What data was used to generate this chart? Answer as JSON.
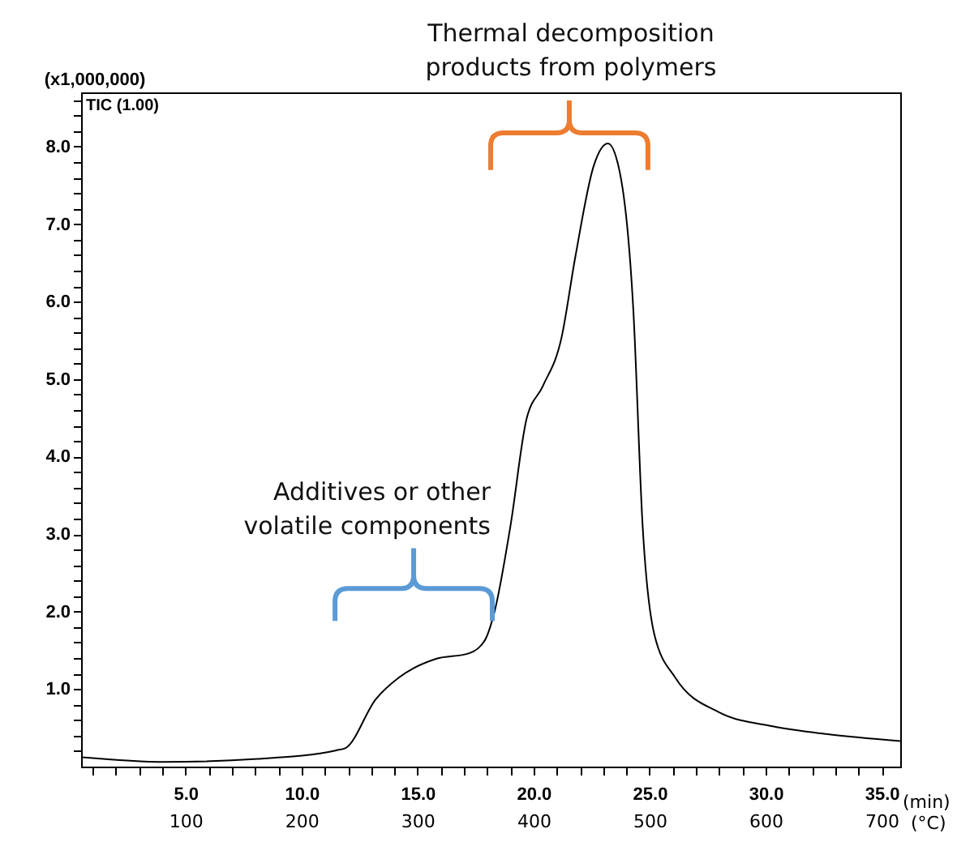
{
  "chart_data": {
    "type": "line",
    "ylabel": "(x1,000,000)",
    "xlabel": "(min)",
    "x2label": "(°C)",
    "x": [
      0.55,
      4.1,
      8.1,
      11.5,
      11.9,
      13.2,
      14.2,
      15.8,
      17.2,
      17.9,
      18.3,
      19.0,
      19.7,
      20.4,
      21.2,
      21.8,
      22.6,
      23.2,
      23.7,
      24.3,
      24.7,
      25.2,
      26.1,
      28.0,
      30.3,
      32.6,
      35.8
    ],
    "series": [
      {
        "color": "#000000",
        "values": [
          0.12,
          0.06,
          0.1,
          0.21,
          0.24,
          0.87,
          1.15,
          1.39,
          1.46,
          1.63,
          1.98,
          3.1,
          4.49,
          4.91,
          5.53,
          6.58,
          7.76,
          8.04,
          7.69,
          5.88,
          3.1,
          1.71,
          1.15,
          0.7,
          0.52,
          0.42,
          0.33
        ]
      }
    ],
    "xlim": [
      0.5,
      35.8
    ],
    "ylim": [
      0,
      8.7
    ],
    "x2lim": [
      10,
      716
    ],
    "xticks": [
      {
        "value": 1,
        "label": null
      },
      {
        "value": 2,
        "label": null
      },
      {
        "value": 3,
        "label": null
      },
      {
        "value": 4,
        "label": null
      },
      {
        "value": 5,
        "label": "5.0"
      },
      {
        "value": 6,
        "label": null
      },
      {
        "value": 7,
        "label": null
      },
      {
        "value": 8,
        "label": null
      },
      {
        "value": 9,
        "label": null
      },
      {
        "value": 10,
        "label": "10.0"
      },
      {
        "value": 11,
        "label": null
      },
      {
        "value": 12,
        "label": null
      },
      {
        "value": 13,
        "label": null
      },
      {
        "value": 14,
        "label": null
      },
      {
        "value": 15,
        "label": "15.0"
      },
      {
        "value": 16,
        "label": null
      },
      {
        "value": 17,
        "label": null
      },
      {
        "value": 18,
        "label": null
      },
      {
        "value": 19,
        "label": null
      },
      {
        "value": 20,
        "label": "20.0"
      },
      {
        "value": 21,
        "label": null
      },
      {
        "value": 22,
        "label": null
      },
      {
        "value": 23,
        "label": null
      },
      {
        "value": 24,
        "label": null
      },
      {
        "value": 25,
        "label": "25.0"
      },
      {
        "value": 26,
        "label": null
      },
      {
        "value": 27,
        "label": null
      },
      {
        "value": 28,
        "label": null
      },
      {
        "value": 29,
        "label": null
      },
      {
        "value": 30,
        "label": "30.0"
      },
      {
        "value": 31,
        "label": null
      },
      {
        "value": 32,
        "label": null
      },
      {
        "value": 33,
        "label": null
      },
      {
        "value": 34,
        "label": null
      },
      {
        "value": 35,
        "label": "35.0"
      }
    ],
    "x2ticks": [
      100,
      200,
      300,
      400,
      500,
      600,
      700
    ],
    "yticks": [
      {
        "value": 0.2,
        "label": null
      },
      {
        "value": 0.4,
        "label": null
      },
      {
        "value": 0.6,
        "label": null
      },
      {
        "value": 0.8,
        "label": null
      },
      {
        "value": 1,
        "label": "1.0"
      },
      {
        "value": 1.2,
        "label": null
      },
      {
        "value": 1.4,
        "label": null
      },
      {
        "value": 1.6,
        "label": null
      },
      {
        "value": 1.8,
        "label": null
      },
      {
        "value": 2,
        "label": "2.0"
      },
      {
        "value": 2.2,
        "label": null
      },
      {
        "value": 2.4,
        "label": null
      },
      {
        "value": 2.6,
        "label": null
      },
      {
        "value": 2.8,
        "label": null
      },
      {
        "value": 3,
        "label": "3.0"
      },
      {
        "value": 3.2,
        "label": null
      },
      {
        "value": 3.4,
        "label": null
      },
      {
        "value": 3.6,
        "label": null
      },
      {
        "value": 3.8,
        "label": null
      },
      {
        "value": 4,
        "label": "4.0"
      },
      {
        "value": 4.2,
        "label": null
      },
      {
        "value": 4.4,
        "label": null
      },
      {
        "value": 4.6,
        "label": null
      },
      {
        "value": 4.8,
        "label": null
      },
      {
        "value": 5,
        "label": "5.0"
      },
      {
        "value": 5.2,
        "label": null
      },
      {
        "value": 5.4,
        "label": null
      },
      {
        "value": 5.6,
        "label": null
      },
      {
        "value": 5.8,
        "label": null
      },
      {
        "value": 6,
        "label": "6.0"
      },
      {
        "value": 6.2,
        "label": null
      },
      {
        "value": 6.4,
        "label": null
      },
      {
        "value": 6.6,
        "label": null
      },
      {
        "value": 6.8,
        "label": null
      },
      {
        "value": 7,
        "label": "7.0"
      },
      {
        "value": 7.2,
        "label": null
      },
      {
        "value": 7.4,
        "label": null
      },
      {
        "value": 7.6,
        "label": null
      },
      {
        "value": 7.8,
        "label": null
      },
      {
        "value": 8,
        "label": "8.0"
      },
      {
        "value": 8.2,
        "label": null
      },
      {
        "value": 8.4,
        "label": null
      },
      {
        "value": 8.6,
        "label": null
      }
    ],
    "annotations": [
      "TIC (1.00)",
      "Additives or other volatile components",
      "Thermal decomposition products from polymers"
    ]
  }
}
